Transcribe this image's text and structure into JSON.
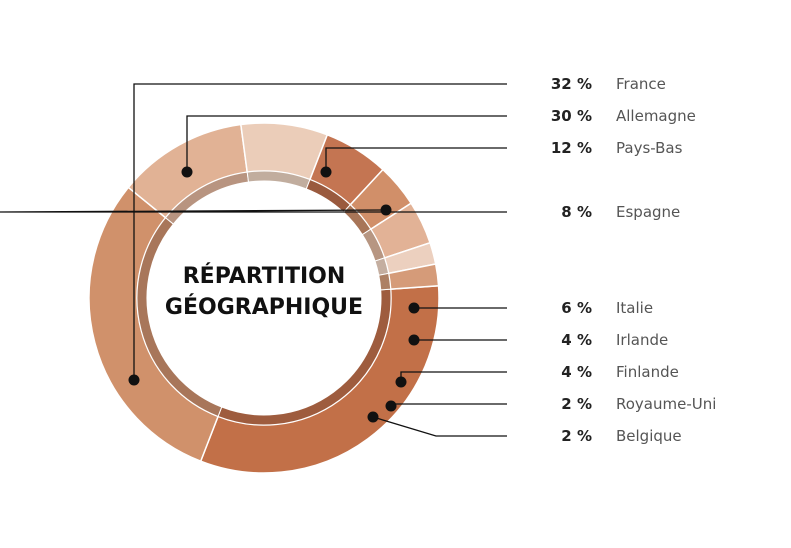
{
  "chart_data": {
    "type": "pie",
    "title_lines": [
      "RÉPARTITION",
      "GÉOGRAPHIQUE"
    ],
    "slices": [
      {
        "label": "France",
        "value": 32,
        "value_label": "32 %",
        "color": "#c27048",
        "ring_color": "#9e5c3e"
      },
      {
        "label": "Allemagne",
        "value": 30,
        "value_label": "30 %",
        "color": "#d0916b",
        "ring_color": "#a8765a"
      },
      {
        "label": "Pays-Bas",
        "value": 12,
        "value_label": "12 %",
        "color": "#e1b295",
        "ring_color": "#b89480"
      },
      {
        "label": "Espagne",
        "value": 8,
        "value_label": "8 %",
        "color": "#ebcdb9",
        "ring_color": "#c1ad9e"
      },
      {
        "label": "Italie",
        "value": 6,
        "value_label": "6 %",
        "color": "#c47552",
        "ring_color": "#9a5a3e"
      },
      {
        "label": "Irlande",
        "value": 4,
        "value_label": "4 %",
        "color": "#d18f69",
        "ring_color": "#a87558"
      },
      {
        "label": "Finlande",
        "value": 4,
        "value_label": "4 %",
        "color": "#e2b296",
        "ring_color": "#b79682"
      },
      {
        "label": "Royaume-Uni",
        "value": 2,
        "value_label": "2 %",
        "color": "#ecd0bf",
        "ring_color": "#c4aea0"
      },
      {
        "label": "Belgique",
        "value": 2,
        "value_label": "2 %",
        "color": "#d59b79",
        "ring_color": "#ad8064"
      }
    ]
  }
}
